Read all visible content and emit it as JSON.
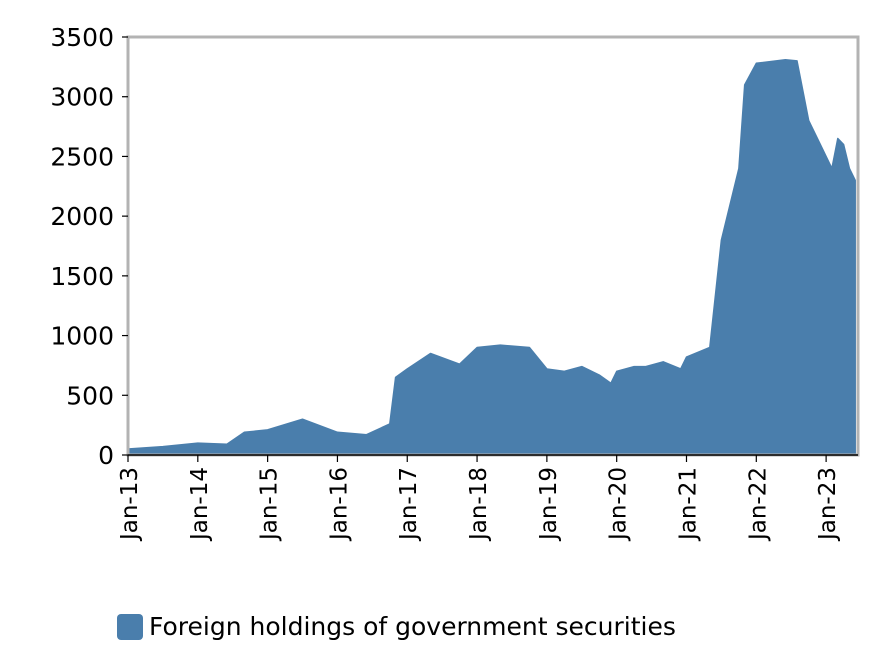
{
  "chart_data": {
    "type": "area",
    "legend": {
      "position": "bottom-left"
    },
    "series": [
      {
        "name": "Foreign holdings of government securities",
        "color": "#4a7eac",
        "x": [
          "2013-01",
          "2013-07",
          "2014-01",
          "2014-06",
          "2014-09",
          "2015-01",
          "2015-07",
          "2016-01",
          "2016-06",
          "2016-10",
          "2016-11",
          "2017-01",
          "2017-05",
          "2017-10",
          "2018-01",
          "2018-05",
          "2018-10",
          "2019-01",
          "2019-04",
          "2019-07",
          "2019-10",
          "2019-12",
          "2020-01",
          "2020-04",
          "2020-06",
          "2020-09",
          "2020-12",
          "2021-01",
          "2021-05",
          "2021-07",
          "2021-10",
          "2021-11",
          "2022-01",
          "2022-06",
          "2022-08",
          "2022-10",
          "2022-12",
          "2023-02",
          "2023-03",
          "2023-04",
          "2023-05",
          "2023-06"
        ],
        "values": [
          50,
          70,
          100,
          90,
          190,
          210,
          300,
          190,
          170,
          260,
          650,
          720,
          850,
          760,
          900,
          920,
          900,
          720,
          700,
          740,
          670,
          600,
          700,
          740,
          740,
          780,
          720,
          820,
          900,
          1800,
          2400,
          3100,
          3280,
          3310,
          3300,
          2800,
          2600,
          2400,
          2650,
          2600,
          2400,
          2300
        ]
      }
    ],
    "x_ticks": [
      "Jan-13",
      "Jan-14",
      "Jan-15",
      "Jan-16",
      "Jan-17",
      "Jan-18",
      "Jan-19",
      "Jan-20",
      "Jan-21",
      "Jan-22",
      "Jan-23"
    ],
    "y_ticks": [
      "0",
      "500",
      "1000",
      "1500",
      "2000",
      "2500",
      "3000",
      "3500"
    ],
    "ylim": [
      0,
      3500
    ],
    "grid": false,
    "frame_color": "#b3b3b3"
  }
}
